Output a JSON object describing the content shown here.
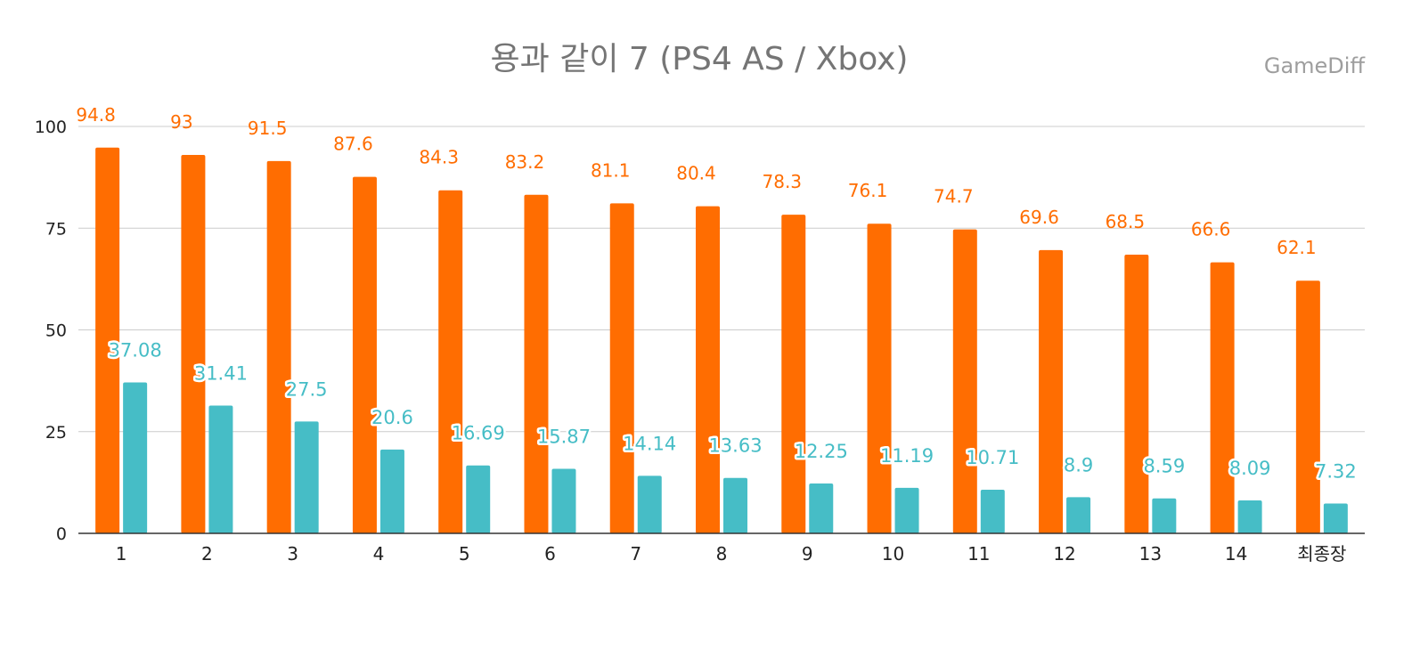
{
  "chart_data": {
    "type": "bar",
    "title": "용과 같이 7 (PS4 AS / Xbox)",
    "watermark": "GameDiff",
    "categories": [
      "1",
      "2",
      "3",
      "4",
      "5",
      "6",
      "7",
      "8",
      "9",
      "10",
      "11",
      "12",
      "13",
      "14",
      "최종장"
    ],
    "series": [
      {
        "name": "PS4",
        "color": "#ff6d01",
        "values": [
          94.8,
          93,
          91.5,
          87.6,
          84.3,
          83.2,
          81.1,
          80.4,
          78.3,
          76.1,
          74.7,
          69.6,
          68.5,
          66.6,
          62.1
        ],
        "labels": [
          "94.8",
          "93",
          "91.5",
          "87.6",
          "84.3",
          "83.2",
          "81.1",
          "80.4",
          "78.3",
          "76.1",
          "74.7",
          "69.6",
          "68.5",
          "66.6",
          "62.1"
        ]
      },
      {
        "name": "Xbox",
        "color": "#46bdc6",
        "values": [
          37.08,
          31.41,
          27.5,
          20.6,
          16.69,
          15.87,
          14.14,
          13.63,
          12.25,
          11.19,
          10.71,
          8.9,
          8.59,
          8.09,
          7.32
        ],
        "labels": [
          "37.08",
          "31.41",
          "27.5",
          "20.6",
          "16.69",
          "15.87",
          "14.14",
          "13.63",
          "12.25",
          "11.19",
          "10.71",
          "8.9",
          "8.59",
          "8.09",
          "7.32"
        ]
      }
    ],
    "y_ticks": [
      "0",
      "25",
      "50",
      "75",
      "100"
    ],
    "ylim": [
      0,
      100
    ],
    "grid": true,
    "xlabel": "",
    "ylabel": ""
  }
}
